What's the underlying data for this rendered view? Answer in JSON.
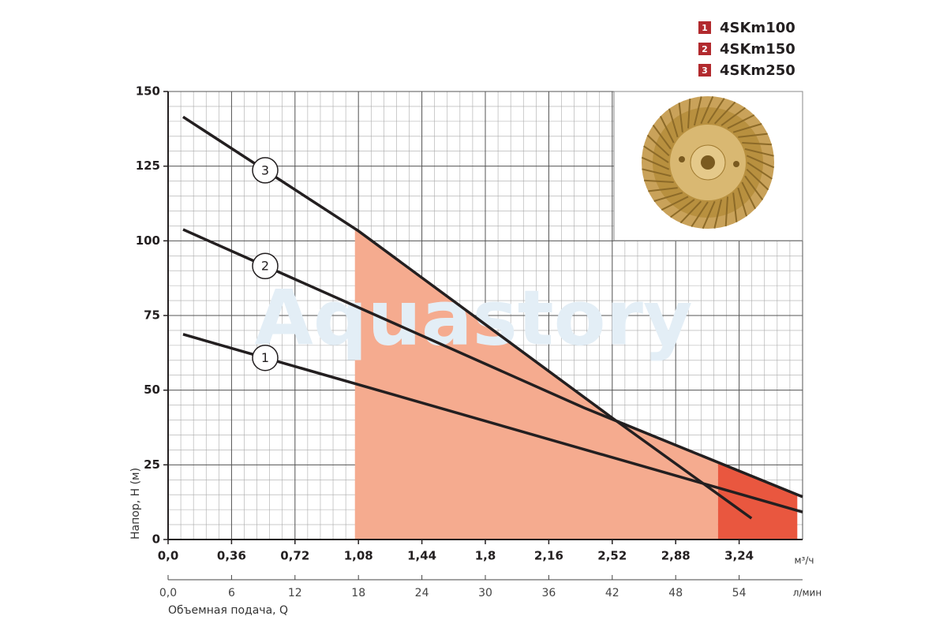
{
  "chart_data": {
    "type": "line",
    "watermark": "Aquastory",
    "ylabel": "Напор, H (м)",
    "xunit": "м³/ч",
    "x2unit": "л/мин",
    "x2label": "Объемная подача, Q",
    "xlim": [
      0,
      3.6
    ],
    "xticks": [
      {
        "value": 0,
        "label": "0,0"
      },
      {
        "value": 0.36,
        "label": "0,36"
      },
      {
        "value": 0.72,
        "label": "0,72"
      },
      {
        "value": 1.08,
        "label": "1,08"
      },
      {
        "value": 1.44,
        "label": "1,44"
      },
      {
        "value": 1.8,
        "label": "1,8"
      },
      {
        "value": 2.16,
        "label": "2,16"
      },
      {
        "value": 2.52,
        "label": "2,52"
      },
      {
        "value": 2.88,
        "label": "2,88"
      },
      {
        "value": 3.24,
        "label": "3,24"
      }
    ],
    "x2lim": [
      0,
      60
    ],
    "x2ticks": [
      {
        "value": 0,
        "label": "0,0"
      },
      6,
      12,
      18,
      24,
      30,
      36,
      42,
      48,
      54
    ],
    "ylim": [
      0,
      150
    ],
    "yticks": [
      0,
      25,
      50,
      75,
      100,
      125,
      150
    ],
    "grid": true,
    "grid_subdivisions": 5,
    "legend": "top-right",
    "shaded_ranges": [
      {
        "x": [
          1.06,
          3.12
        ],
        "color": "#f5ab8f"
      },
      {
        "x": [
          3.12,
          3.57
        ],
        "color": "#e9573f"
      }
    ],
    "series": [
      {
        "name": "4SKm100",
        "label": "1",
        "color": "#231f20",
        "x": [
          0.085,
          3.6
        ],
        "values": [
          68.7,
          9.2
        ]
      },
      {
        "name": "4SKm150",
        "label": "2",
        "color": "#231f20",
        "x": [
          0.085,
          2.36,
          3.6
        ],
        "values": [
          103.8,
          44.1,
          14.3
        ]
      },
      {
        "name": "4SKm250",
        "label": "3",
        "color": "#231f20",
        "x": [
          0.085,
          1.08,
          2.52,
          3.31
        ],
        "values": [
          141.5,
          103.3,
          40.7,
          7.1
        ]
      }
    ]
  }
}
